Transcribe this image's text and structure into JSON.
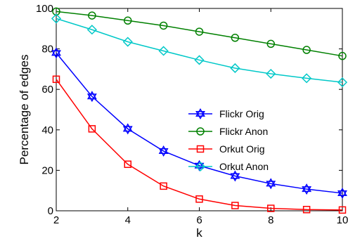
{
  "chart_data": {
    "type": "line",
    "title": "",
    "xlabel": "k",
    "ylabel": "Percentage of edges",
    "xlim": [
      2,
      10
    ],
    "ylim": [
      0,
      100
    ],
    "xticks": [
      2,
      4,
      6,
      8,
      10
    ],
    "yticks": [
      0,
      20,
      40,
      60,
      80,
      100
    ],
    "grid": false,
    "legend_position": "center-right",
    "x": [
      2,
      3,
      4,
      5,
      6,
      7,
      8,
      9,
      10
    ],
    "series": [
      {
        "name": "Flickr Orig",
        "color": "#0000ff",
        "marker": "hexagram",
        "values": [
          78,
          56.5,
          40.5,
          29.5,
          22.3,
          17.2,
          13.4,
          10.7,
          8.7
        ]
      },
      {
        "name": "Flickr Anon",
        "color": "#008000",
        "marker": "circle",
        "values": [
          98.5,
          96.5,
          94,
          91.5,
          88.5,
          85.5,
          82.5,
          79.5,
          76.5
        ]
      },
      {
        "name": "Orkut Orig",
        "color": "#ff0000",
        "marker": "square",
        "values": [
          65,
          40.5,
          23,
          12.2,
          5.8,
          2.6,
          1.2,
          0.6,
          0.4
        ]
      },
      {
        "name": "Orkut Anon",
        "color": "#00c8c8",
        "marker": "diamond",
        "values": [
          95,
          89.5,
          83.5,
          79,
          74.5,
          70.5,
          67.7,
          65.5,
          63.5
        ]
      }
    ]
  }
}
